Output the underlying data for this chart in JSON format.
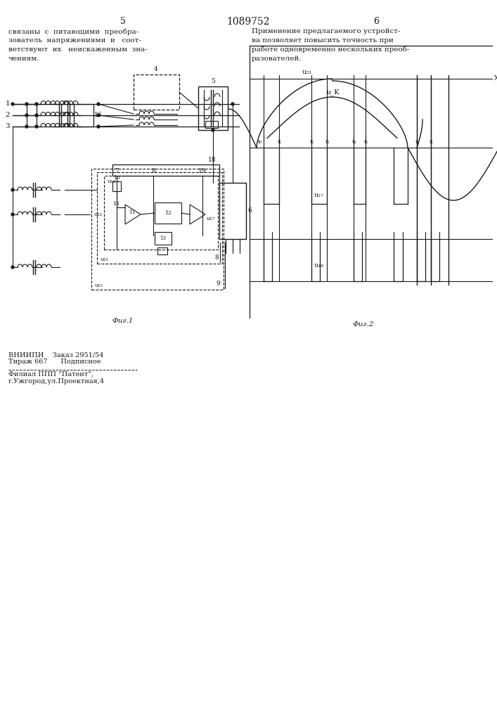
{
  "title": "1089752",
  "page_left": "5",
  "page_right": "6",
  "text_left": "связаны  с  питающими  преобра-\nзователь  напряжениями  и   соот-\nветствуют  их   неискаженным  зна-\nчениям.",
  "text_right": "Применение предлагаемого устройст-\nва позволяет повысить точность при\nработе одновременно нескольких преоб-\nразователей.",
  "fig1_label": "Фиг.1",
  "fig2_label": "Фиг.2",
  "bg_color": "#ffffff",
  "line_color": "#1a1a1a",
  "font_size_title": 10,
  "font_size_body": 7.5,
  "font_size_labels": 6.5
}
